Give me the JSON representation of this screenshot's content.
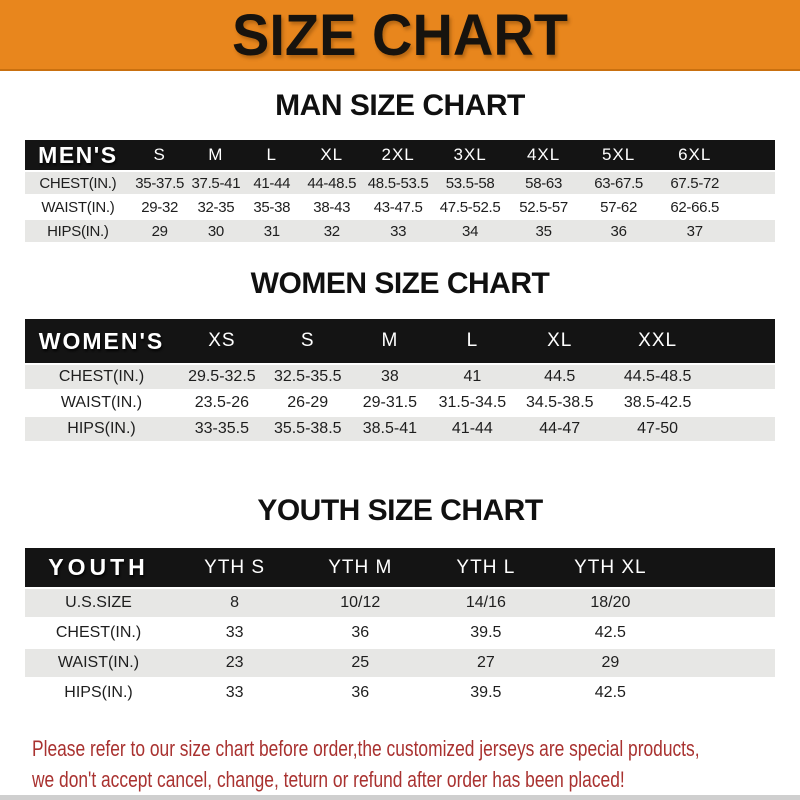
{
  "banner": {
    "title": "SIZE CHART",
    "bg_color": "#E8861D",
    "accent_line_color": "#C9700F",
    "text_color": "#17130e"
  },
  "sections": [
    {
      "key": "men",
      "title": "MAN SIZE CHART",
      "corner_label": "MEN'S",
      "columns": [
        "S",
        "M",
        "L",
        "XL",
        "2XL",
        "3XL",
        "4XL",
        "5XL",
        "6XL"
      ],
      "rows": [
        {
          "label": "CHEST(IN.)",
          "values": [
            "35-37.5",
            "37.5-41",
            "41-44",
            "44-48.5",
            "48.5-53.5",
            "53.5-58",
            "58-63",
            "63-67.5",
            "67.5-72"
          ]
        },
        {
          "label": "WAIST(IN.)",
          "values": [
            "29-32",
            "32-35",
            "35-38",
            "38-43",
            "43-47.5",
            "47.5-52.5",
            "52.5-57",
            "57-62",
            "62-66.5"
          ]
        },
        {
          "label": "HIPS(IN.)",
          "values": [
            "29",
            "30",
            "31",
            "32",
            "33",
            "34",
            "35",
            "36",
            "37"
          ]
        }
      ]
    },
    {
      "key": "women",
      "title": "WOMEN SIZE CHART",
      "corner_label": "WOMEN'S",
      "columns": [
        "XS",
        "S",
        "M",
        "L",
        "XL",
        "XXL"
      ],
      "rows": [
        {
          "label": "CHEST(IN.)",
          "values": [
            "29.5-32.5",
            "32.5-35.5",
            "38",
            "41",
            "44.5",
            "44.5-48.5"
          ]
        },
        {
          "label": "WAIST(IN.)",
          "values": [
            "23.5-26",
            "26-29",
            "29-31.5",
            "31.5-34.5",
            "34.5-38.5",
            "38.5-42.5"
          ]
        },
        {
          "label": "HIPS(IN.)",
          "values": [
            "33-35.5",
            "35.5-38.5",
            "38.5-41",
            "41-44",
            "44-47",
            "47-50"
          ]
        }
      ]
    },
    {
      "key": "youth",
      "title": "YOUTH SIZE CHART",
      "corner_label": "YOUTH",
      "columns": [
        "YTH S",
        "YTH M",
        "YTH L",
        "YTH XL"
      ],
      "rows": [
        {
          "label": "U.S.SIZE",
          "values": [
            "8",
            "10/12",
            "14/16",
            "18/20"
          ]
        },
        {
          "label": "CHEST(IN.)",
          "values": [
            "33",
            "36",
            "39.5",
            "42.5"
          ]
        },
        {
          "label": "WAIST(IN.)",
          "values": [
            "23",
            "25",
            "27",
            "29"
          ]
        },
        {
          "label": "HIPS(IN.)",
          "values": [
            "33",
            "36",
            "39.5",
            "42.5"
          ]
        }
      ]
    }
  ],
  "table_colors": {
    "header_bg": "#141414",
    "header_text": "#ffffff",
    "row_gray": "#E7E7E5",
    "row_white": "#ffffff"
  },
  "disclaimer": {
    "lines": [
      "Please refer to our size chart before order,the customized jerseys are special products,",
      "we don't accept cancel, change, teturn or refund after order has been placed!"
    ],
    "text_color": "#A93230"
  }
}
